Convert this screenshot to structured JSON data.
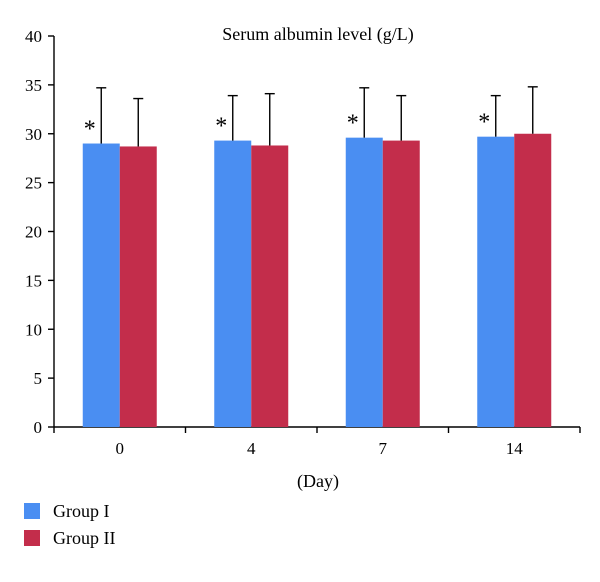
{
  "chart_data": {
    "type": "bar",
    "title": "Serum albumin level (g/L)",
    "xlabel": "(Day)",
    "ylabel": "",
    "categories": [
      "0",
      "4",
      "7",
      "14"
    ],
    "ylim": [
      0,
      40
    ],
    "yticks": [
      "0",
      "5",
      "10",
      "15",
      "20",
      "25",
      "30",
      "35",
      "40"
    ],
    "grid": false,
    "legend_position": "bottom-left",
    "series": [
      {
        "name": "Group I",
        "color": "#4A8EF2",
        "values": [
          29.0,
          29.3,
          29.6,
          29.7
        ],
        "error_upper": [
          34.7,
          33.9,
          34.7,
          33.9
        ],
        "annotations": [
          "*",
          "*",
          "*",
          "*"
        ]
      },
      {
        "name": "Group II",
        "color": "#C32D4B",
        "values": [
          28.7,
          28.8,
          29.3,
          30.0
        ],
        "error_upper": [
          33.6,
          34.1,
          33.9,
          34.8
        ],
        "annotations": [
          "",
          "",
          "",
          ""
        ]
      }
    ]
  }
}
